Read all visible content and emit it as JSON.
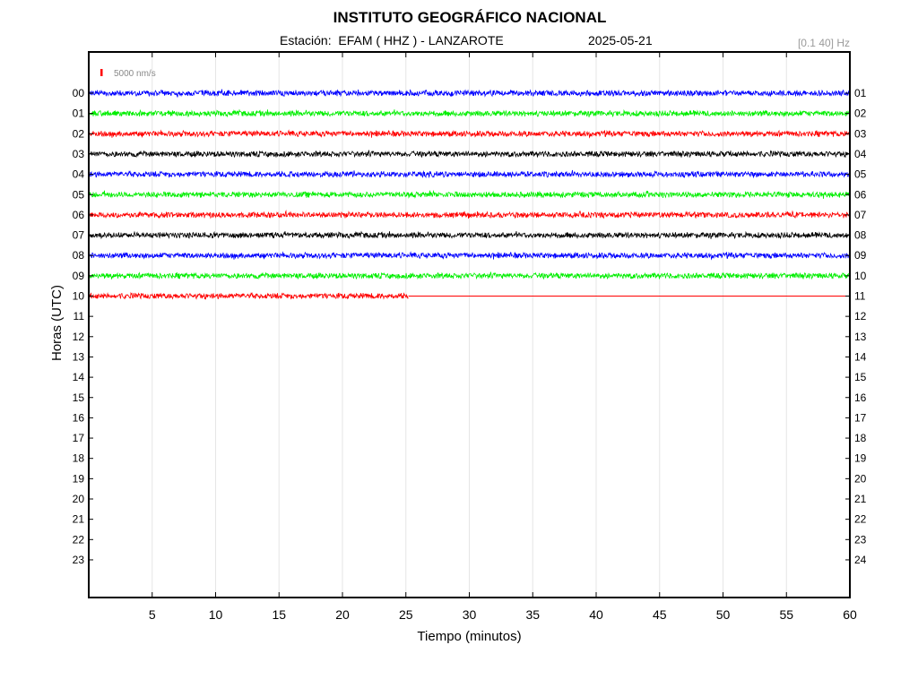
{
  "header": {
    "title": "INSTITUTO GEOGRÁFICO NACIONAL",
    "station_label": "Estación:  EFAM ( HHZ ) - LANZAROTE",
    "date": "2025-05-21",
    "filter": "[0.1 40] Hz"
  },
  "scale": {
    "label": "5000 nm/s",
    "color": "#ff0000"
  },
  "chart_data": {
    "type": "line",
    "title": "INSTITUTO GEOGRÁFICO NACIONAL",
    "subtitle": "Estación:  EFAM ( HHZ ) - LANZAROTE   2025-05-21",
    "xlabel": "Tiempo (minutos)",
    "ylabel": "Horas (UTC)",
    "xlim": [
      0,
      60
    ],
    "x_ticks": [
      5,
      10,
      15,
      20,
      25,
      30,
      35,
      40,
      45,
      50,
      55,
      60
    ],
    "y_ticks_left": [
      "00",
      "01",
      "02",
      "03",
      "04",
      "05",
      "06",
      "07",
      "08",
      "09",
      "10",
      "11",
      "12",
      "13",
      "14",
      "15",
      "16",
      "17",
      "18",
      "19",
      "20",
      "21",
      "22",
      "23"
    ],
    "y_ticks_right": [
      "01",
      "02",
      "03",
      "04",
      "05",
      "06",
      "07",
      "08",
      "09",
      "10",
      "11",
      "12",
      "13",
      "14",
      "15",
      "16",
      "17",
      "18",
      "19",
      "20",
      "21",
      "22",
      "23",
      "24"
    ],
    "grid": "vertical",
    "trace_colors": [
      "#0000ff",
      "#00ee00",
      "#ff0000",
      "#000000"
    ],
    "series": [
      {
        "hour": 0,
        "color": "#0000ff",
        "end_minute": 60
      },
      {
        "hour": 1,
        "color": "#00ee00",
        "end_minute": 60
      },
      {
        "hour": 2,
        "color": "#ff0000",
        "end_minute": 60
      },
      {
        "hour": 3,
        "color": "#000000",
        "end_minute": 60
      },
      {
        "hour": 4,
        "color": "#0000ff",
        "end_minute": 60
      },
      {
        "hour": 5,
        "color": "#00ee00",
        "end_minute": 60
      },
      {
        "hour": 6,
        "color": "#ff0000",
        "end_minute": 60
      },
      {
        "hour": 7,
        "color": "#000000",
        "end_minute": 60
      },
      {
        "hour": 8,
        "color": "#0000ff",
        "end_minute": 60
      },
      {
        "hour": 9,
        "color": "#00ee00",
        "end_minute": 60
      },
      {
        "hour": 10,
        "color": "#ff0000",
        "end_minute": 25.2,
        "flat_until": 60
      }
    ]
  }
}
